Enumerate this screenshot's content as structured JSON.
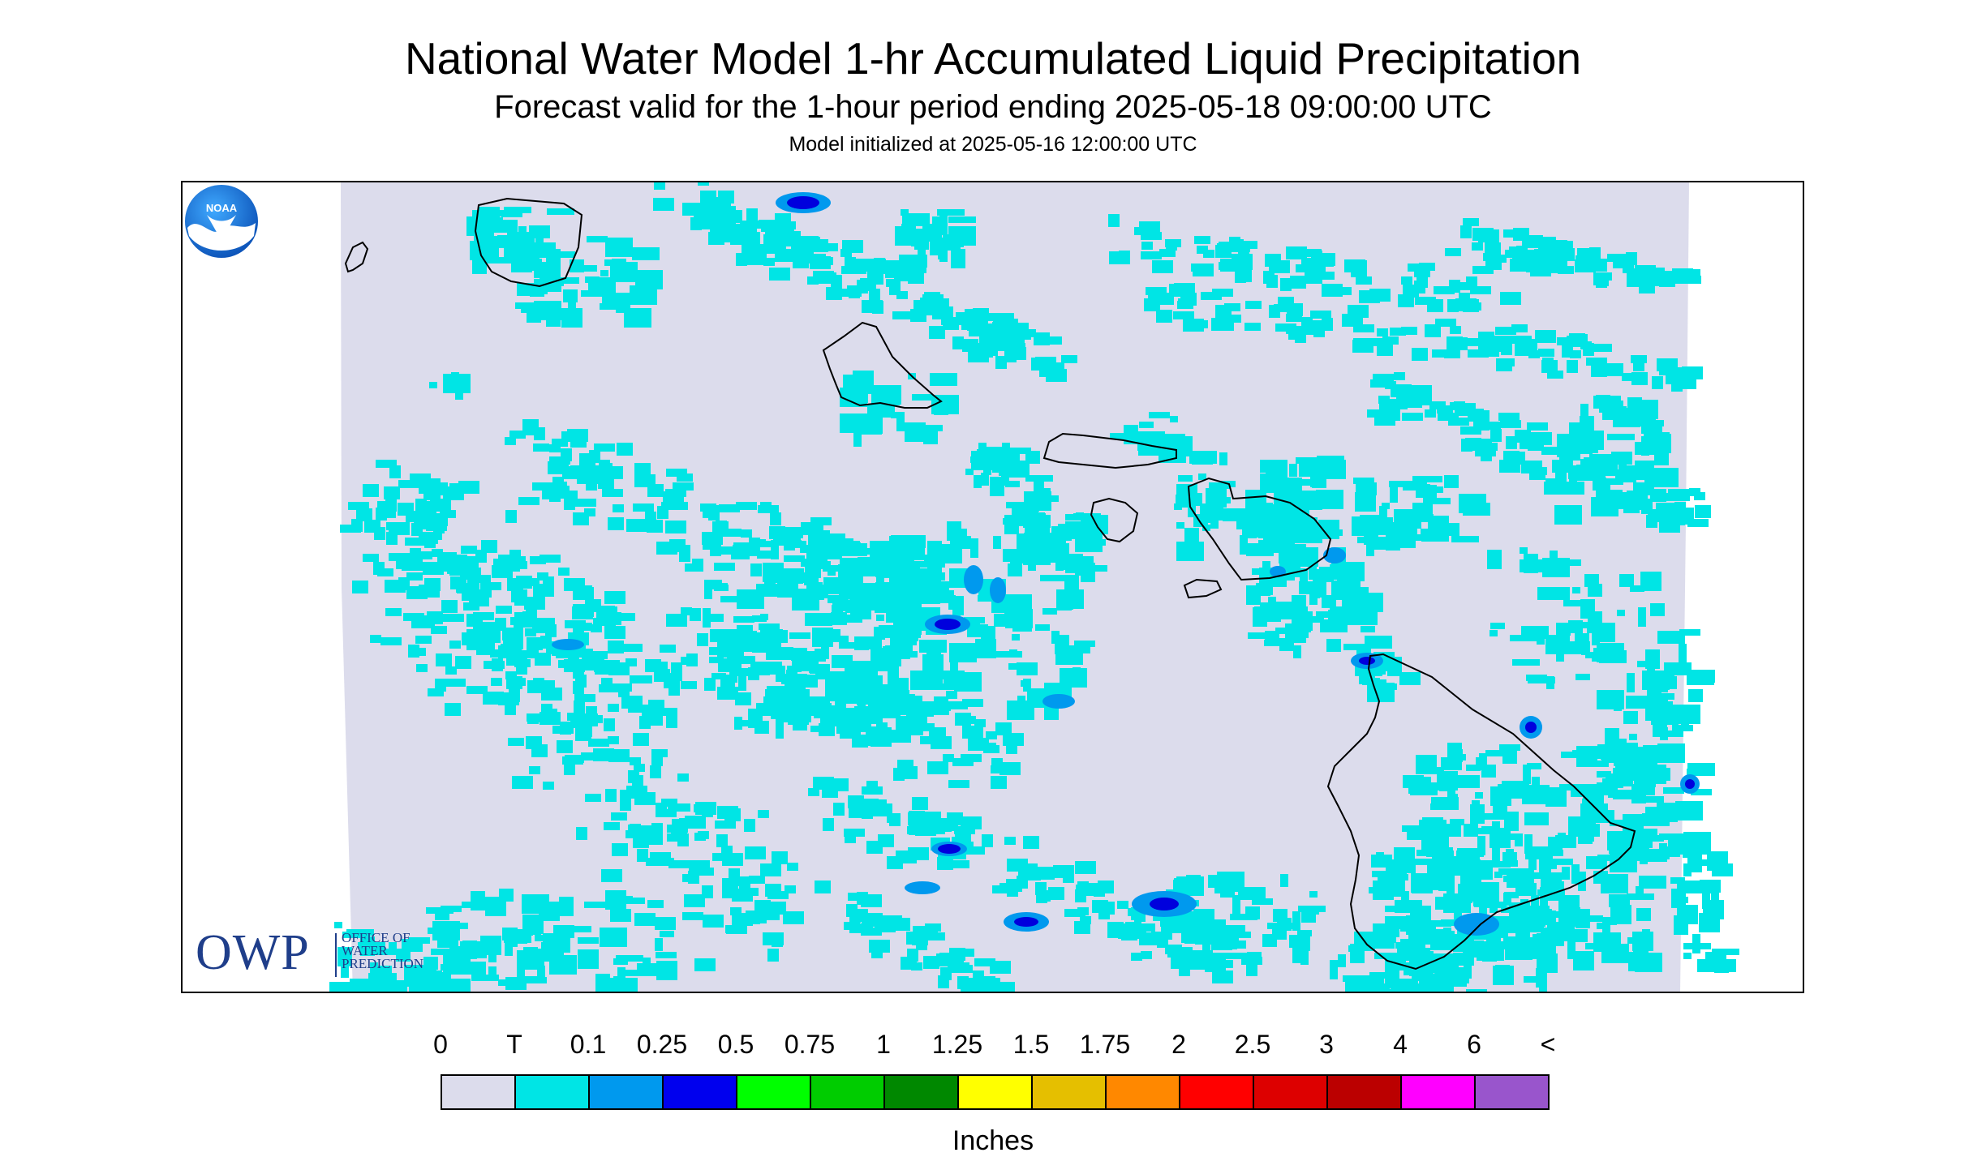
{
  "header": {
    "title": "National Water Model 1-hr Accumulated Liquid Precipitation",
    "subtitle": "Forecast valid for the 1-hour period ending 2025-05-18 09:00:00 UTC",
    "init": "Model initialized at 2025-05-16 12:00:00 UTC"
  },
  "map": {
    "background_color": "#dcdcec",
    "trace_color": "#00e5e5",
    "light_color": "#0099ee",
    "heavy_color": "#0000dd",
    "coast_color": "#000000"
  },
  "logos": {
    "owp_letters": "OWP",
    "owp_line1": "OFFICE OF",
    "owp_line2": "WATER",
    "owp_line3": "PREDICTION",
    "noaa": "NOAA"
  },
  "legend": {
    "ticks": [
      "0",
      "T",
      "0.1",
      "0.25",
      "0.5",
      "0.75",
      "1",
      "1.25",
      "1.5",
      "1.75",
      "2",
      "2.5",
      "3",
      "4",
      "6",
      "<"
    ],
    "colors": [
      "#dcdcec",
      "#00e5e5",
      "#0099ee",
      "#0000ee",
      "#00ff00",
      "#00cc00",
      "#008800",
      "#ffff00",
      "#e5bf00",
      "#ff8800",
      "#ff0000",
      "#dd0000",
      "#bb0000",
      "#ff00ff",
      "#9955cc"
    ],
    "units_label": "Inches"
  }
}
